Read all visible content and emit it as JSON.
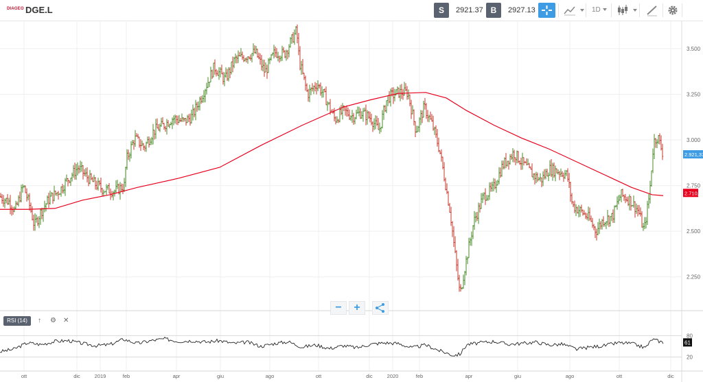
{
  "toolbar": {
    "logo": "DIAGEO",
    "symbol": "DGE.L",
    "sell_badge": "S",
    "sell_price": "2921.37",
    "buy_badge": "B",
    "buy_price": "2927.13",
    "timeframe": "1D",
    "icons": [
      "crosshair-icon",
      "line-chart-icon",
      "candlestick-icon",
      "draw-icon",
      "gear-icon"
    ]
  },
  "indicator": {
    "label": "RSI (14)",
    "icons": [
      "arrow-up-icon",
      "gear-icon",
      "close-icon"
    ]
  },
  "chart_data": [
    {
      "type": "ohlc",
      "ylim": [
        2080,
        3650
      ],
      "yticks": [
        "3.500",
        "3.250",
        "3.000",
        "2.750",
        "2.500",
        "2.250"
      ],
      "ytick_values": [
        3500,
        3250,
        3000,
        2750,
        2500,
        2250
      ],
      "xticks": [
        "ott",
        "dic",
        "2019",
        "feb",
        "apr",
        "giu",
        "ago",
        "ott",
        "dic",
        "2020",
        "feb",
        "apr",
        "giu",
        "ago",
        "ott",
        "dic"
      ],
      "last_price": {
        "label": "2.921,37",
        "value": 2921.37,
        "color": "#3d9ce3"
      },
      "ma_label": {
        "label": "2.710,",
        "value": 2710,
        "color": "#e8001c"
      },
      "price_path": [
        [
          0,
          2690
        ],
        [
          14,
          2660
        ],
        [
          22,
          2610
        ],
        [
          34,
          2750
        ],
        [
          44,
          2630
        ],
        [
          50,
          2530
        ],
        [
          60,
          2610
        ],
        [
          72,
          2680
        ],
        [
          86,
          2720
        ],
        [
          100,
          2790
        ],
        [
          114,
          2850
        ],
        [
          126,
          2800
        ],
        [
          138,
          2760
        ],
        [
          150,
          2730
        ],
        [
          168,
          2720
        ],
        [
          181,
          2750
        ],
        [
          184,
          2890
        ],
        [
          196,
          3010
        ],
        [
          210,
          2960
        ],
        [
          224,
          3050
        ],
        [
          238,
          3080
        ],
        [
          252,
          3120
        ],
        [
          268,
          3100
        ],
        [
          280,
          3130
        ],
        [
          296,
          3260
        ],
        [
          312,
          3400
        ],
        [
          328,
          3330
        ],
        [
          342,
          3440
        ],
        [
          358,
          3460
        ],
        [
          372,
          3480
        ],
        [
          386,
          3370
        ],
        [
          400,
          3480
        ],
        [
          414,
          3470
        ],
        [
          424,
          3540
        ],
        [
          432,
          3600
        ],
        [
          436,
          3430
        ],
        [
          448,
          3250
        ],
        [
          462,
          3310
        ],
        [
          474,
          3230
        ],
        [
          488,
          3110
        ],
        [
          500,
          3160
        ],
        [
          514,
          3130
        ],
        [
          526,
          3150
        ],
        [
          540,
          3120
        ],
        [
          552,
          3050
        ],
        [
          564,
          3230
        ],
        [
          580,
          3260
        ],
        [
          594,
          3260
        ],
        [
          606,
          3050
        ],
        [
          618,
          3180
        ],
        [
          630,
          3080
        ],
        [
          640,
          2950
        ],
        [
          648,
          2780
        ],
        [
          656,
          2600
        ],
        [
          662,
          2400
        ],
        [
          670,
          2150
        ],
        [
          676,
          2280
        ],
        [
          690,
          2550
        ],
        [
          704,
          2690
        ],
        [
          718,
          2730
        ],
        [
          732,
          2860
        ],
        [
          748,
          2930
        ],
        [
          762,
          2870
        ],
        [
          776,
          2810
        ],
        [
          788,
          2780
        ],
        [
          800,
          2840
        ],
        [
          812,
          2830
        ],
        [
          826,
          2810
        ],
        [
          834,
          2640
        ],
        [
          846,
          2610
        ],
        [
          858,
          2570
        ],
        [
          868,
          2500
        ],
        [
          878,
          2560
        ],
        [
          892,
          2580
        ],
        [
          904,
          2700
        ],
        [
          918,
          2670
        ],
        [
          930,
          2610
        ],
        [
          938,
          2500
        ],
        [
          946,
          2700
        ],
        [
          952,
          2990
        ],
        [
          958,
          3020
        ],
        [
          966,
          2920
        ]
      ],
      "moving_average": [
        [
          0,
          2620
        ],
        [
          40,
          2620
        ],
        [
          80,
          2625
        ],
        [
          120,
          2670
        ],
        [
          160,
          2700
        ],
        [
          200,
          2740
        ],
        [
          260,
          2790
        ],
        [
          320,
          2850
        ],
        [
          380,
          2970
        ],
        [
          440,
          3080
        ],
        [
          500,
          3180
        ],
        [
          540,
          3220
        ],
        [
          580,
          3255
        ],
        [
          620,
          3260
        ],
        [
          650,
          3230
        ],
        [
          680,
          3160
        ],
        [
          720,
          3080
        ],
        [
          760,
          3010
        ],
        [
          800,
          2950
        ],
        [
          840,
          2880
        ],
        [
          880,
          2810
        ],
        [
          920,
          2740
        ],
        [
          950,
          2700
        ],
        [
          966,
          2695
        ]
      ]
    },
    {
      "type": "line",
      "name": "RSI (14)",
      "ylim": [
        0,
        100
      ],
      "yticks": [
        "80",
        "20"
      ],
      "ytick_values": [
        80,
        20
      ],
      "last_value": "61",
      "path": [
        [
          0,
          35
        ],
        [
          20,
          42
        ],
        [
          40,
          60
        ],
        [
          60,
          55
        ],
        [
          80,
          64
        ],
        [
          100,
          66
        ],
        [
          120,
          58
        ],
        [
          140,
          52
        ],
        [
          160,
          55
        ],
        [
          180,
          70
        ],
        [
          200,
          58
        ],
        [
          220,
          66
        ],
        [
          240,
          71
        ],
        [
          260,
          64
        ],
        [
          280,
          66
        ],
        [
          300,
          62
        ],
        [
          320,
          66
        ],
        [
          340,
          58
        ],
        [
          360,
          62
        ],
        [
          380,
          50
        ],
        [
          400,
          58
        ],
        [
          420,
          63
        ],
        [
          440,
          48
        ],
        [
          460,
          54
        ],
        [
          480,
          44
        ],
        [
          500,
          52
        ],
        [
          520,
          46
        ],
        [
          540,
          56
        ],
        [
          560,
          60
        ],
        [
          580,
          58
        ],
        [
          600,
          46
        ],
        [
          620,
          54
        ],
        [
          640,
          38
        ],
        [
          660,
          25
        ],
        [
          670,
          28
        ],
        [
          680,
          55
        ],
        [
          700,
          60
        ],
        [
          720,
          64
        ],
        [
          740,
          56
        ],
        [
          760,
          58
        ],
        [
          780,
          62
        ],
        [
          800,
          54
        ],
        [
          820,
          56
        ],
        [
          840,
          42
        ],
        [
          860,
          48
        ],
        [
          880,
          52
        ],
        [
          900,
          60
        ],
        [
          920,
          58
        ],
        [
          940,
          46
        ],
        [
          950,
          70
        ],
        [
          966,
          61
        ]
      ]
    }
  ],
  "colors": {
    "up": "#4a8a2a",
    "down": "#c0392b",
    "ma": "#e8001c",
    "accent": "#3d9ce3"
  }
}
